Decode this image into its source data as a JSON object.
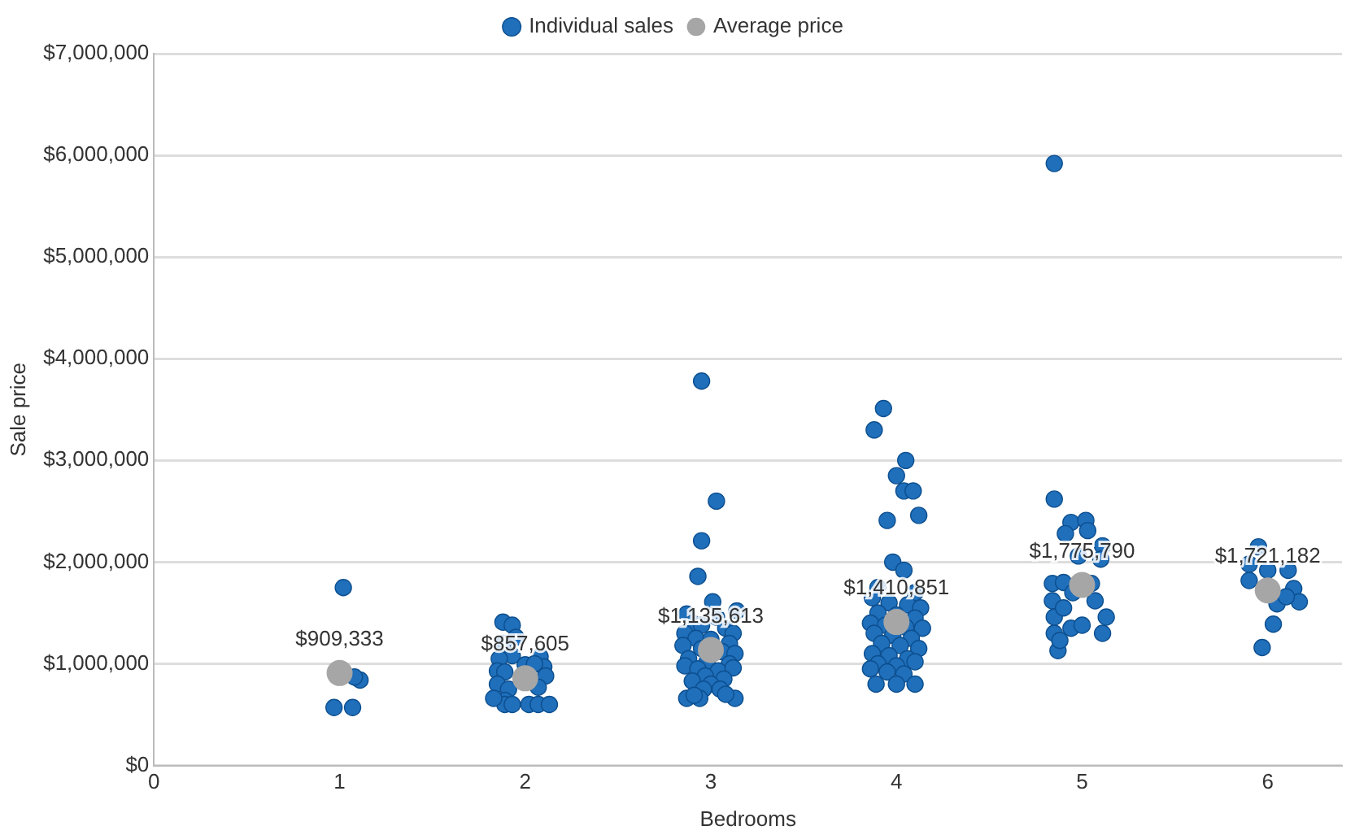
{
  "chart_data": {
    "type": "scatter",
    "xlabel": "Bedrooms",
    "ylabel": "Sale price",
    "legend": "top",
    "grid": "y",
    "marker": "circle",
    "xlim": [
      0,
      6.4
    ],
    "xticks": [
      0,
      1,
      2,
      3,
      4,
      5,
      6
    ],
    "ylim": [
      0,
      7000000
    ],
    "yticks": [
      {
        "value": 0,
        "label": "$0"
      },
      {
        "value": 1000000,
        "label": "$1,000,000"
      },
      {
        "value": 2000000,
        "label": "$2,000,000"
      },
      {
        "value": 3000000,
        "label": "$3,000,000"
      },
      {
        "value": 4000000,
        "label": "$4,000,000"
      },
      {
        "value": 5000000,
        "label": "$5,000,000"
      },
      {
        "value": 6000000,
        "label": "$6,000,000"
      },
      {
        "value": 7000000,
        "label": "$7,000,000"
      }
    ],
    "series": [
      {
        "name": "Individual sales",
        "color": "#1f6fbb",
        "x": [
          1.02,
          1.11,
          0.97,
          1.07,
          1.08,
          1.88,
          1.93,
          1.95,
          1.88,
          1.93,
          1.86,
          2.08,
          2.1,
          1.85,
          1.89,
          2.11,
          1.85,
          1.91,
          2.07,
          1.89,
          1.89,
          1.93,
          2.02,
          2.07,
          2.13,
          1.83,
          2.0,
          2.05,
          2.95,
          3.03,
          2.95,
          2.93,
          3.01,
          3.14,
          2.87,
          3.03,
          2.9,
          2.95,
          3.08,
          2.86,
          3.12,
          2.92,
          3.0,
          3.1,
          2.85,
          2.95,
          3.06,
          3.13,
          2.88,
          2.98,
          3.1,
          2.86,
          2.93,
          3.04,
          3.12,
          2.97,
          3.07,
          2.9,
          3.0,
          3.05,
          2.96,
          2.87,
          2.94,
          3.13,
          3.08,
          2.91,
          3.93,
          3.88,
          4.05,
          4.0,
          4.04,
          4.09,
          3.95,
          4.12,
          3.98,
          4.04,
          3.9,
          4.1,
          3.87,
          3.96,
          4.06,
          4.13,
          3.9,
          4.0,
          4.1,
          3.86,
          3.94,
          4.05,
          4.14,
          3.88,
          3.98,
          4.08,
          3.92,
          4.02,
          4.12,
          3.87,
          3.96,
          4.06,
          3.9,
          4.0,
          4.1,
          3.86,
          3.95,
          4.04,
          3.89,
          4.0,
          4.1,
          4.85,
          4.85,
          4.94,
          5.02,
          5.03,
          4.91,
          5.11,
          4.98,
          5.1,
          4.84,
          5.05,
          4.9,
          4.84,
          5.07,
          4.85,
          5.13,
          4.85,
          5.11,
          4.94,
          4.87,
          4.9,
          4.95,
          4.88,
          5.0,
          5.95,
          5.9,
          6.0,
          6.11,
          5.9,
          6.14,
          6.17,
          6.05,
          6.1,
          6.03,
          5.97
        ],
        "values": [
          1750000,
          840000,
          570000,
          570000,
          870000,
          1410000,
          1380000,
          1260000,
          1200000,
          1080000,
          1050000,
          1070000,
          970000,
          930000,
          920000,
          880000,
          800000,
          750000,
          770000,
          640000,
          600000,
          600000,
          600000,
          600000,
          600000,
          660000,
          990000,
          1000000,
          3780000,
          2600000,
          2210000,
          1860000,
          1610000,
          1520000,
          1490000,
          1460000,
          1400000,
          1380000,
          1350000,
          1300000,
          1300000,
          1250000,
          1240000,
          1200000,
          1180000,
          1150000,
          1120000,
          1100000,
          1050000,
          1020000,
          1000000,
          980000,
          950000,
          930000,
          960000,
          880000,
          850000,
          830000,
          800000,
          750000,
          750000,
          660000,
          660000,
          660000,
          700000,
          690000,
          3510000,
          3300000,
          3000000,
          2850000,
          2700000,
          2700000,
          2410000,
          2460000,
          2000000,
          1920000,
          1750000,
          1700000,
          1650000,
          1600000,
          1580000,
          1550000,
          1500000,
          1480000,
          1450000,
          1400000,
          1380000,
          1360000,
          1350000,
          1300000,
          1280000,
          1250000,
          1200000,
          1180000,
          1150000,
          1100000,
          1080000,
          1050000,
          1000000,
          980000,
          1020000,
          950000,
          920000,
          900000,
          800000,
          800000,
          800000,
          5920000,
          2620000,
          2390000,
          2410000,
          2310000,
          2280000,
          2160000,
          2060000,
          2030000,
          1790000,
          1790000,
          1800000,
          1620000,
          1620000,
          1460000,
          1460000,
          1300000,
          1300000,
          1350000,
          1130000,
          1550000,
          1700000,
          1230000,
          1380000,
          2150000,
          1980000,
          1920000,
          1920000,
          1820000,
          1740000,
          1610000,
          1590000,
          1660000,
          1390000,
          1160000
        ]
      },
      {
        "name": "Average price",
        "color": "#a6a6a6",
        "x": [
          1,
          2,
          3,
          4,
          5,
          6
        ],
        "values": [
          909333,
          857605,
          1135613,
          1410851,
          1775790,
          1721182
        ],
        "value_labels": [
          "$909,333",
          "$857,605",
          "$1,135,613",
          "$1,410,851",
          "$1,775,790",
          "$1,721,182"
        ]
      }
    ]
  }
}
